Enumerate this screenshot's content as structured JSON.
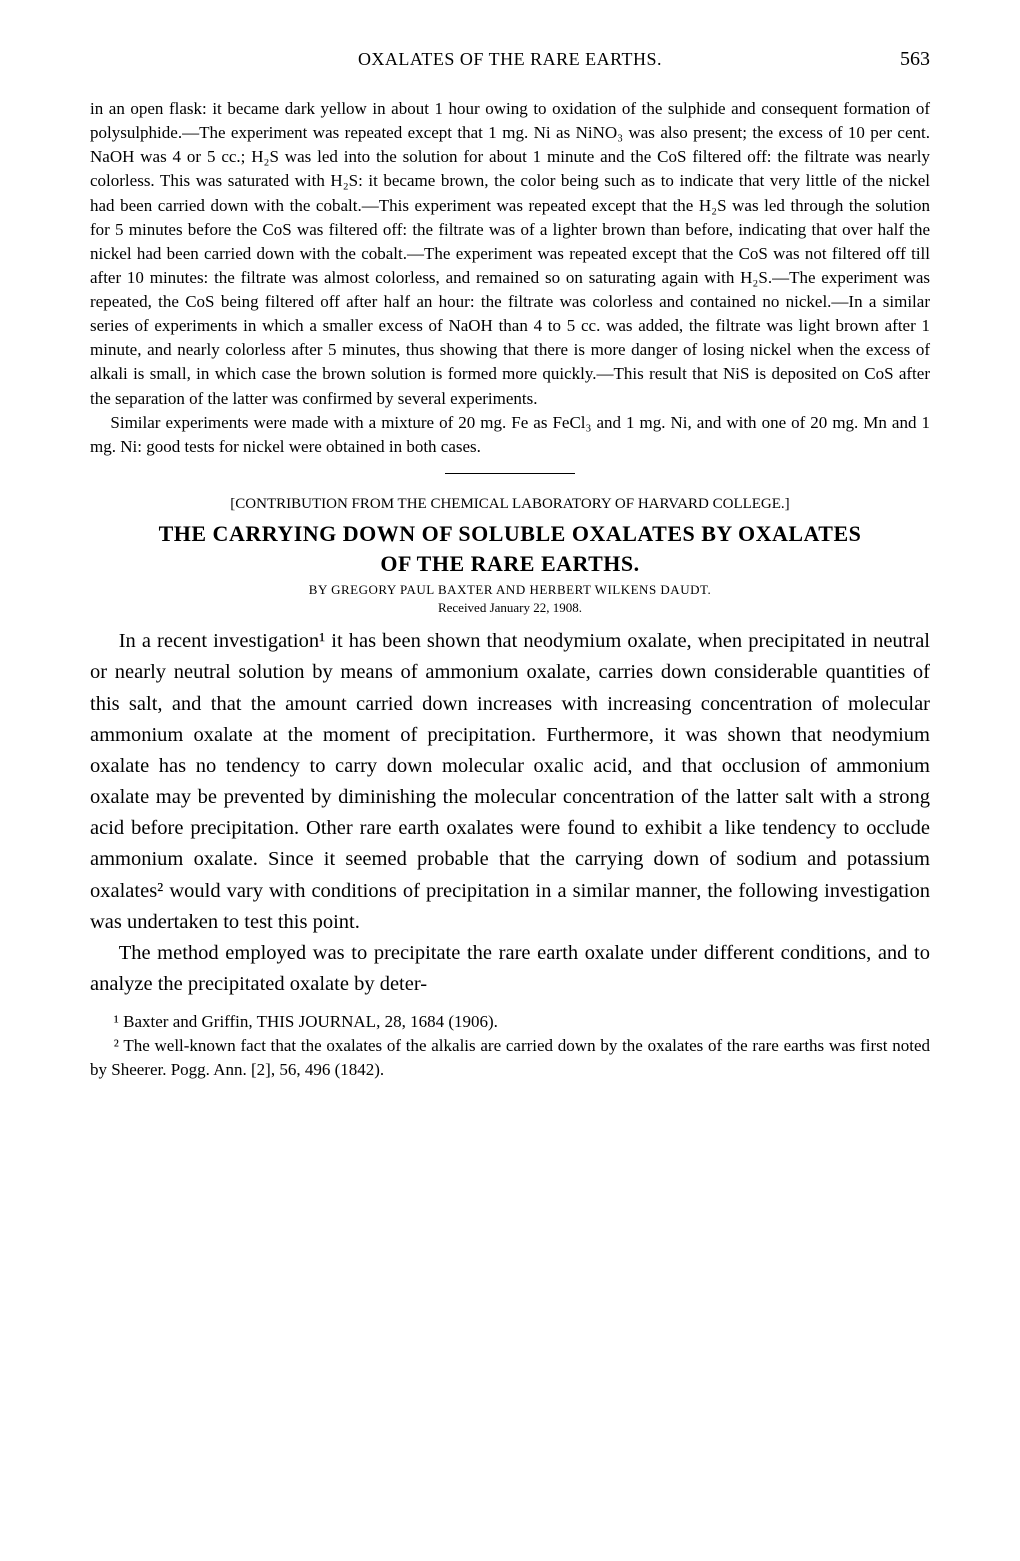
{
  "runningHead": {
    "title": "OXALATES OF THE RARE EARTHS.",
    "pageNumber": "563"
  },
  "smallBody": {
    "p1": "in an open flask: it became dark yellow in about 1 hour owing to oxidation of the sulphide and consequent formation of polysulphide.—The experiment was repeated except that 1 mg. Ni as NiNO₃ was also present; the excess of 10 per cent. NaOH was 4 or 5 cc.; H₂S was led into the solution for about 1 minute and the CoS filtered off: the filtrate was nearly colorless. This was saturated with H₂S: it became brown, the color being such as to indicate that very little of the nickel had been carried down with the cobalt.—This experiment was repeated except that the H₂S was led through the solution for 5 minutes before the CoS was filtered off: the filtrate was of a lighter brown than before, indicating that over half the nickel had been carried down with the cobalt.—The experiment was repeated except that the CoS was not filtered off till after 10 minutes: the filtrate was almost colorless, and remained so on saturating again with H₂S.—The experiment was repeated, the CoS being filtered off after half an hour: the filtrate was colorless and contained no nickel.—In a similar series of experiments in which a smaller excess of NaOH than 4 to 5 cc. was added, the filtrate was light brown after 1 minute, and nearly colorless after 5 minutes, thus showing that there is more danger of losing nickel when the excess of alkali is small, in which case the brown solution is formed more quickly.—This result that NiS is deposited on CoS after the separation of the latter was confirmed by several experiments.",
    "p2": "Similar experiments were made with a mixture of 20 mg. Fe as FeCl₃ and 1 mg. Ni, and with one of 20 mg. Mn and 1 mg. Ni: good tests for nickel were obtained in both cases."
  },
  "article": {
    "contribution": "[CONTRIBUTION FROM THE CHEMICAL LABORATORY OF HARVARD COLLEGE.]",
    "titleLine1": "THE CARRYING DOWN OF SOLUBLE OXALATES BY OXALATES",
    "titleLine2": "OF THE RARE EARTHS.",
    "byline": "BY GREGORY PAUL BAXTER AND HERBERT WILKENS DAUDT.",
    "received": "Received January 22, 1908."
  },
  "largeBody": {
    "p1": "In a recent investigation¹ it has been shown that neodymium oxalate, when precipitated in neutral or nearly neutral solution by means of ammonium oxalate, carries down considerable quantities of this salt, and that the amount carried down increases with increasing concentration of molecular ammonium oxalate at the moment of precipitation. Furthermore, it was shown that neodymium oxalate has no tendency to carry down molecular oxalic acid, and that occlusion of ammonium oxalate may be prevented by diminishing the molecular concentration of the latter salt with a strong acid before precipitation. Other rare earth oxalates were found to exhibit a like tendency to occlude ammonium oxalate. Since it seemed probable that the carrying down of sodium and potassium oxalates² would vary with conditions of precipitation in a similar manner, the following investigation was undertaken to test this point.",
    "p2": "The method employed was to precipitate the rare earth oxalate under different conditions, and to analyze the precipitated oxalate by deter-"
  },
  "footnotes": {
    "f1": "¹ Baxter and Griffin, THIS JOURNAL, 28, 1684 (1906).",
    "f2": "² The well-known fact that the oxalates of the alkalis are carried down by the oxalates of the rare earths was first noted by Sheerer. Pogg. Ann. [2], 56, 496 (1842)."
  }
}
